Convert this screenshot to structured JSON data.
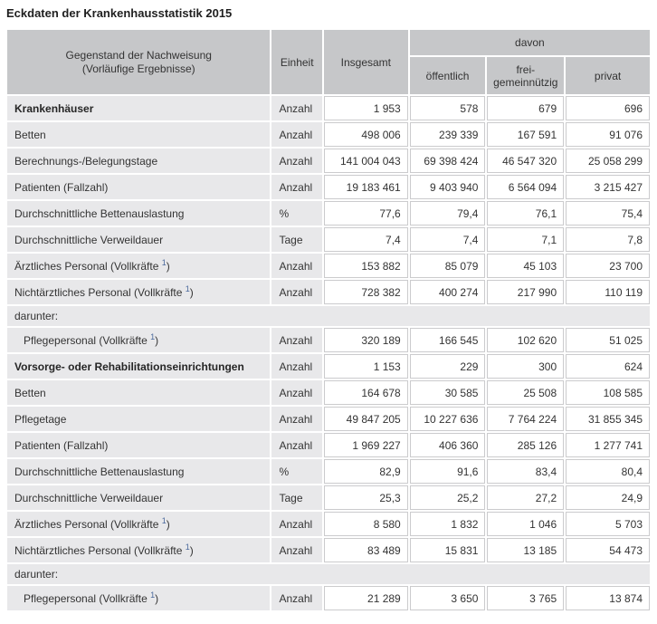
{
  "page_title": "Eckdaten der Krankenhausstatistik 2015",
  "colors": {
    "header_background": "#c6c7c9",
    "row_background": "#e8e8ea",
    "grid_line": "#cbcbcd",
    "footnote_link": "#4a699c",
    "text": "#333333"
  },
  "chart_data": {
    "type": "table",
    "title": "Eckdaten der Krankenhausstatistik 2015",
    "footnote_marker": "1",
    "column_headers": {
      "subject_line1": "Gegenstand der Nachweisung",
      "subject_line2": "(Vorläufige Ergebnisse)",
      "unit": "Einheit",
      "total": "Insgesamt",
      "davon": "davon",
      "public": "öffentlich",
      "nonprofit": "frei-gemeinnützig",
      "private": "privat"
    },
    "rows": [
      {
        "type": "data",
        "bold": true,
        "label": "Krankenhäuser",
        "unit": "Anzahl",
        "values": [
          "1 953",
          "578",
          "679",
          "696"
        ]
      },
      {
        "type": "data",
        "label": "Betten",
        "unit": "Anzahl",
        "values": [
          "498 006",
          "239 339",
          "167 591",
          "91 076"
        ]
      },
      {
        "type": "data",
        "label": "Berechnungs-/Belegungstage",
        "unit": "Anzahl",
        "values": [
          "141 004 043",
          "69 398 424",
          "46 547 320",
          "25 058 299"
        ]
      },
      {
        "type": "data",
        "label": "Patienten (Fallzahl)",
        "unit": "Anzahl",
        "values": [
          "19 183 461",
          "9 403 940",
          "6 564 094",
          "3 215 427"
        ]
      },
      {
        "type": "data",
        "label": "Durchschnittliche Bettenauslastung",
        "unit": "%",
        "values": [
          "77,6",
          "79,4",
          "76,1",
          "75,4"
        ]
      },
      {
        "type": "data",
        "label": "Durchschnittliche Verweildauer",
        "unit": "Tage",
        "values": [
          "7,4",
          "7,4",
          "7,1",
          "7,8"
        ]
      },
      {
        "type": "data",
        "footnote": true,
        "label_prefix": "Ärztliches Personal (Vollkräfte",
        "label_suffix": ")",
        "unit": "Anzahl",
        "values": [
          "153 882",
          "85 079",
          "45 103",
          "23 700"
        ]
      },
      {
        "type": "data",
        "footnote": true,
        "label_prefix": "Nichtärztliches Personal (Vollkräfte",
        "label_suffix": ")",
        "unit": "Anzahl",
        "values": [
          "728 382",
          "400 274",
          "217 990",
          "110 119"
        ]
      },
      {
        "type": "section",
        "label": "darunter:"
      },
      {
        "type": "data",
        "indent": true,
        "footnote": true,
        "label_prefix": "Pflegepersonal (Vollkräfte",
        "label_suffix": ")",
        "unit": "Anzahl",
        "values": [
          "320 189",
          "166 545",
          "102 620",
          "51 025"
        ]
      },
      {
        "type": "data",
        "bold": true,
        "label": "Vorsorge- oder Rehabilitationseinrichtungen",
        "unit": "Anzahl",
        "values": [
          "1 153",
          "229",
          "300",
          "624"
        ]
      },
      {
        "type": "data",
        "label": "Betten",
        "unit": "Anzahl",
        "values": [
          "164 678",
          "30 585",
          "25 508",
          "108 585"
        ]
      },
      {
        "type": "data",
        "label": "Pflegetage",
        "unit": "Anzahl",
        "values": [
          "49 847 205",
          "10 227 636",
          "7 764 224",
          "31 855 345"
        ]
      },
      {
        "type": "data",
        "label": "Patienten (Fallzahl)",
        "unit": "Anzahl",
        "values": [
          "1 969 227",
          "406 360",
          "285 126",
          "1 277 741"
        ]
      },
      {
        "type": "data",
        "label": "Durchschnittliche Bettenauslastung",
        "unit": "%",
        "values": [
          "82,9",
          "91,6",
          "83,4",
          "80,4"
        ]
      },
      {
        "type": "data",
        "label": "Durchschnittliche Verweildauer",
        "unit": "Tage",
        "values": [
          "25,3",
          "25,2",
          "27,2",
          "24,9"
        ]
      },
      {
        "type": "data",
        "footnote": true,
        "label_prefix": "Ärztliches Personal (Vollkräfte",
        "label_suffix": ")",
        "unit": "Anzahl",
        "values": [
          "8 580",
          "1 832",
          "1 046",
          "5 703"
        ]
      },
      {
        "type": "data",
        "footnote": true,
        "label_prefix": "Nichtärztliches Personal (Vollkräfte",
        "label_suffix": ")",
        "unit": "Anzahl",
        "values": [
          "83 489",
          "15 831",
          "13 185",
          "54 473"
        ]
      },
      {
        "type": "section",
        "label": "darunter:"
      },
      {
        "type": "data",
        "indent": true,
        "footnote": true,
        "label_prefix": "Pflegepersonal (Vollkräfte",
        "label_suffix": ")",
        "unit": "Anzahl",
        "values": [
          "21 289",
          "3 650",
          "3 765",
          "13 874"
        ]
      }
    ]
  }
}
